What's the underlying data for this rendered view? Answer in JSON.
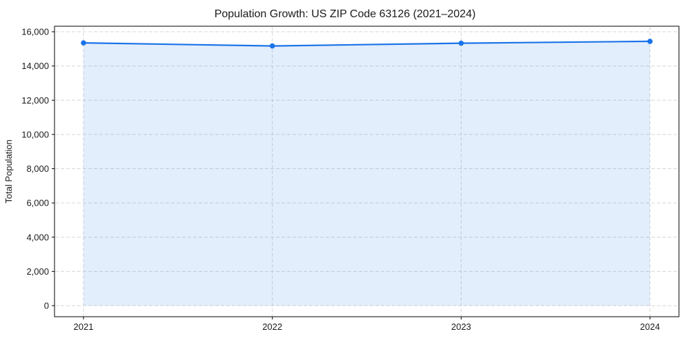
{
  "figure": {
    "title": "Population Growth: US ZIP Code 63126 (2021–2024)"
  },
  "chart_data": {
    "type": "area",
    "title": "Population Growth: US ZIP Code 63126 (2021–2024)",
    "xlabel": "",
    "ylabel": "Total Population",
    "x": [
      2021,
      2022,
      2023,
      2024
    ],
    "x_tick_labels": [
      "2021",
      "2022",
      "2023",
      "2024"
    ],
    "series": [
      {
        "name": "Total Population",
        "values": [
          15350,
          15170,
          15330,
          15440
        ]
      }
    ],
    "ylim": [
      0,
      16000
    ],
    "y_ticks": [
      0,
      2000,
      4000,
      6000,
      8000,
      10000,
      12000,
      14000,
      16000
    ],
    "y_tick_labels": [
      "0",
      "2,000",
      "4,000",
      "6,000",
      "8,000",
      "10,000",
      "12,000",
      "14,000",
      "16,000"
    ],
    "grid": true,
    "grid_style": "dashed",
    "legend": "none",
    "marker": "circle",
    "colors": {
      "line": "#1a73e8",
      "fill": "#1a73e8",
      "fill_opacity": 0.12,
      "grid": "#d6d6d6",
      "axis": "#000000",
      "text": "#1a1a1a",
      "background": "#ffffff"
    }
  }
}
